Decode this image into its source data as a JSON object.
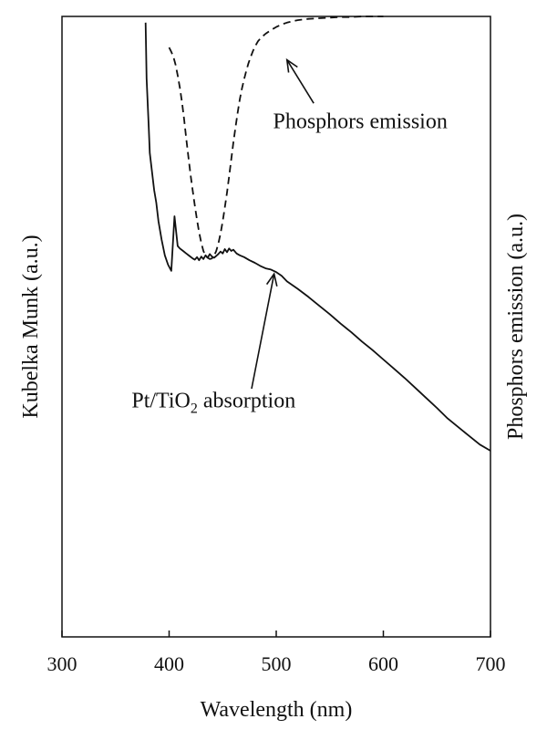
{
  "chart_data": {
    "type": "line",
    "title": "",
    "xlabel": "Wavelength (nm)",
    "ylabel_left": "Kubelka Munk (a.u.)",
    "ylabel_right": "Phosphors emission (a.u.)",
    "xlim": [
      300,
      700
    ],
    "ylim": [
      0,
      1
    ],
    "x_ticks": [
      300,
      400,
      500,
      600,
      700
    ],
    "x_tick_labels": [
      "300",
      "400",
      "500",
      "600",
      "700"
    ],
    "grid": false,
    "series": [
      {
        "style": "solid",
        "color": "#111111",
        "x": [
          378,
          378.5,
          379,
          380,
          381,
          382,
          384,
          386,
          388,
          390,
          393,
          396,
          399,
          402,
          405,
          408,
          410,
          413,
          416,
          419,
          422,
          424,
          426,
          428,
          430,
          432,
          434,
          436,
          438,
          440,
          442,
          444,
          446,
          448,
          450,
          452,
          454,
          456,
          458,
          460,
          463,
          466,
          470,
          475,
          480,
          485,
          490,
          495,
          500,
          505,
          510,
          520,
          530,
          540,
          550,
          560,
          570,
          580,
          590,
          600,
          610,
          620,
          630,
          640,
          650,
          660,
          670,
          680,
          690,
          700
        ],
        "y": [
          0.99,
          0.95,
          0.9,
          0.86,
          0.82,
          0.78,
          0.75,
          0.72,
          0.7,
          0.67,
          0.64,
          0.615,
          0.6,
          0.59,
          0.678,
          0.63,
          0.626,
          0.622,
          0.618,
          0.614,
          0.61,
          0.608,
          0.612,
          0.607,
          0.613,
          0.609,
          0.615,
          0.611,
          0.617,
          0.613,
          0.611,
          0.614,
          0.617,
          0.621,
          0.618,
          0.625,
          0.62,
          0.626,
          0.622,
          0.624,
          0.618,
          0.615,
          0.612,
          0.607,
          0.603,
          0.598,
          0.594,
          0.592,
          0.588,
          0.582,
          0.573,
          0.561,
          0.548,
          0.534,
          0.52,
          0.505,
          0.491,
          0.476,
          0.462,
          0.447,
          0.432,
          0.417,
          0.401,
          0.385,
          0.369,
          0.352,
          0.338,
          0.324,
          0.31,
          0.3
        ]
      },
      {
        "style": "dashed",
        "color": "#111111",
        "x": [
          400,
          402,
          404,
          406,
          408,
          410,
          412,
          414,
          416,
          418,
          420,
          422,
          424,
          426,
          428,
          430,
          432,
          434,
          436,
          438,
          440,
          442,
          444,
          446,
          448,
          450,
          452,
          454,
          456,
          458,
          460,
          462,
          464,
          466,
          468,
          470,
          472,
          474,
          476,
          478,
          480,
          483,
          486,
          490,
          495,
          500,
          505,
          510,
          515,
          520,
          530,
          540,
          550,
          560,
          570,
          580,
          590,
          600
        ],
        "y": [
          0.95,
          0.943,
          0.935,
          0.922,
          0.905,
          0.885,
          0.862,
          0.835,
          0.803,
          0.773,
          0.745,
          0.72,
          0.695,
          0.672,
          0.652,
          0.635,
          0.622,
          0.614,
          0.611,
          0.609,
          0.61,
          0.614,
          0.622,
          0.634,
          0.65,
          0.67,
          0.692,
          0.716,
          0.742,
          0.77,
          0.797,
          0.822,
          0.845,
          0.866,
          0.884,
          0.899,
          0.912,
          0.924,
          0.934,
          0.943,
          0.951,
          0.96,
          0.966,
          0.972,
          0.978,
          0.983,
          0.987,
          0.99,
          0.992,
          0.994,
          0.996,
          0.997,
          0.998,
          0.999,
          0.999,
          1.0,
          1.0,
          1.0
        ]
      }
    ],
    "annotations": [
      {
        "id": "phosphors",
        "label": "Phosphors emission",
        "label_x": 497,
        "label_y": 0.82,
        "arrow_from": [
          535,
          0.86
        ],
        "arrow_to": [
          510,
          0.93
        ]
      },
      {
        "id": "absorption",
        "label_main": "Pt/TiO",
        "label_sub": "2",
        "label_rest": " absorption",
        "label_x": 365,
        "label_y": 0.37,
        "arrow_from": [
          477,
          0.4
        ],
        "arrow_to": [
          498,
          0.585
        ]
      }
    ]
  }
}
